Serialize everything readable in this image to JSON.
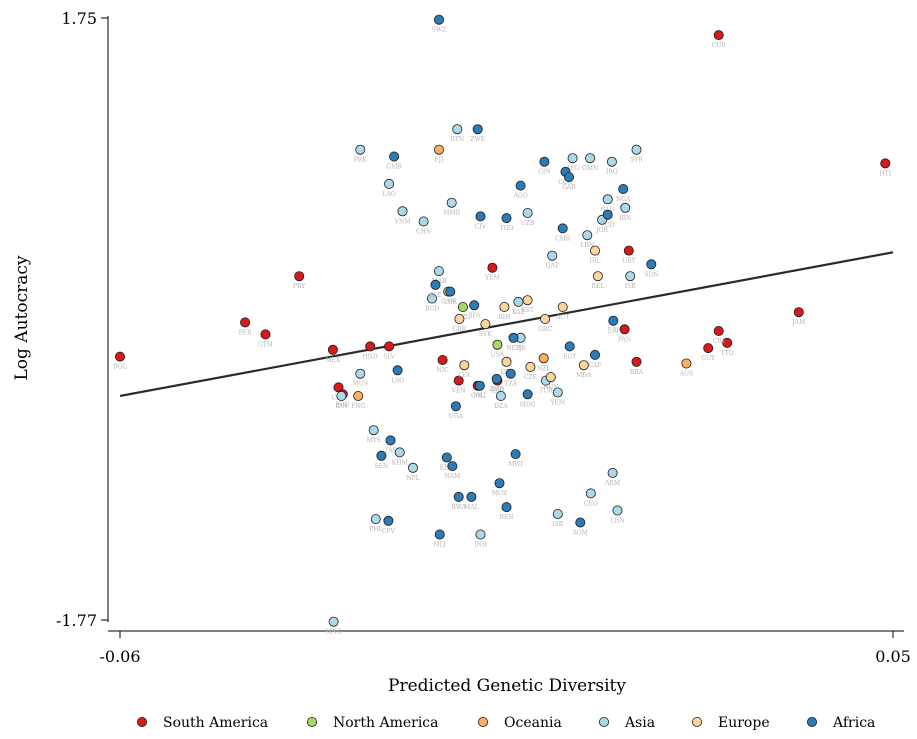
{
  "chart_data": {
    "type": "scatter",
    "xlabel": "Predicted Genetic Diversity",
    "ylabel": "Log Autocracy",
    "xlim": [
      -0.06,
      0.05
    ],
    "ylim": [
      -1.77,
      1.75
    ],
    "x_ticks": [
      "-0.06",
      "0.05"
    ],
    "y_ticks": [
      "1.75",
      "-1.77"
    ],
    "grid": false,
    "legend_position": "bottom",
    "fit_line": {
      "x": [
        -0.06,
        0.05
      ],
      "y": [
        -0.46,
        0.38
      ]
    },
    "series": [
      {
        "name": "South America",
        "color": "#d7191c",
        "points": [
          {
            "x": -0.06,
            "y": -0.23,
            "label": "BOL"
          },
          {
            "x": -0.0422,
            "y": -0.03,
            "label": "PER"
          },
          {
            "x": -0.0393,
            "y": -0.1,
            "label": "GTM"
          },
          {
            "x": -0.0345,
            "y": 0.24,
            "label": "PRY"
          },
          {
            "x": -0.0297,
            "y": -0.19,
            "label": "MEX"
          },
          {
            "x": -0.0289,
            "y": -0.41,
            "label": "CHL"
          },
          {
            "x": -0.0283,
            "y": -0.45,
            "label": "ECU"
          },
          {
            "x": -0.0244,
            "y": -0.17,
            "label": "HND"
          },
          {
            "x": -0.0217,
            "y": -0.17,
            "label": "SLV"
          },
          {
            "x": -0.0141,
            "y": -0.25,
            "label": "NIC"
          },
          {
            "x": -0.0118,
            "y": -0.37,
            "label": "VEN"
          },
          {
            "x": -0.0091,
            "y": -0.4,
            "label": "COL"
          },
          {
            "x": -0.0063,
            "y": -0.37,
            "label": "ARG"
          },
          {
            "x": -0.007,
            "y": 0.29,
            "label": "YEM"
          },
          {
            "x": 0.0124,
            "y": 0.39,
            "label": "URY"
          },
          {
            "x": 0.0118,
            "y": -0.07,
            "label": "PAN"
          },
          {
            "x": 0.0135,
            "y": -0.26,
            "label": "BRA"
          },
          {
            "x": 0.0237,
            "y": -0.18,
            "label": "GUY"
          },
          {
            "x": 0.0264,
            "y": -0.15,
            "label": "TTO"
          },
          {
            "x": 0.0252,
            "y": -0.08,
            "label": "CRI"
          },
          {
            "x": 0.0366,
            "y": 0.03,
            "label": "JAM"
          },
          {
            "x": 0.0252,
            "y": 1.65,
            "label": "CUB"
          },
          {
            "x": 0.0489,
            "y": 0.9,
            "label": "HTI"
          }
        ]
      },
      {
        "name": "North America",
        "color": "#a6d96a",
        "points": [
          {
            "x": -0.0133,
            "y": 0.15,
            "label": "CAN"
          },
          {
            "x": -0.0063,
            "y": -0.16,
            "label": "USA"
          },
          {
            "x": -0.0112,
            "y": 0.06,
            "label": "NZL"
          }
        ]
      },
      {
        "name": "Oceania",
        "color": "#fdae61",
        "points": [
          {
            "x": -0.0146,
            "y": 0.98,
            "label": "FJI"
          },
          {
            "x": -0.0261,
            "y": -0.46,
            "label": "PNG"
          },
          {
            "x": 0.0206,
            "y": -0.27,
            "label": "AUS"
          },
          {
            "x": 0.0003,
            "y": -0.24,
            "label": "NZL"
          }
        ]
      },
      {
        "name": "Asia",
        "color": "#abd9e9",
        "points": [
          {
            "x": -0.0258,
            "y": 0.98,
            "label": "PRK"
          },
          {
            "x": -0.0217,
            "y": 0.78,
            "label": "LAO"
          },
          {
            "x": -0.0198,
            "y": 0.62,
            "label": "VNM"
          },
          {
            "x": -0.0168,
            "y": 0.56,
            "label": "CHN"
          },
          {
            "x": -0.0285,
            "y": -0.46,
            "label": "IDN"
          },
          {
            "x": -0.0258,
            "y": -0.33,
            "label": "MUS"
          },
          {
            "x": -0.0239,
            "y": -0.66,
            "label": "MYS"
          },
          {
            "x": -0.0202,
            "y": -0.79,
            "label": "KHM"
          },
          {
            "x": -0.0183,
            "y": -0.88,
            "label": "NPL"
          },
          {
            "x": -0.0236,
            "y": -1.18,
            "label": "PHL"
          },
          {
            "x": -0.0156,
            "y": 0.11,
            "label": "BGD"
          },
          {
            "x": -0.0146,
            "y": 0.27,
            "label": "MAB"
          },
          {
            "x": -0.0128,
            "y": 0.67,
            "label": "MMR"
          },
          {
            "x": -0.012,
            "y": 1.1,
            "label": "BTN"
          },
          {
            "x": -0.0033,
            "y": 0.09,
            "label": "KAZ"
          },
          {
            "x": -0.002,
            "y": 0.61,
            "label": "UZB"
          },
          {
            "x": 0.0044,
            "y": 0.93,
            "label": "AFG"
          },
          {
            "x": 0.0069,
            "y": 0.93,
            "label": "OMN"
          },
          {
            "x": 0.0094,
            "y": 0.69,
            "label": "SAU"
          },
          {
            "x": 0.0119,
            "y": 0.64,
            "label": "IRN"
          },
          {
            "x": 0.0135,
            "y": 0.98,
            "label": "SYR"
          },
          {
            "x": 0.01,
            "y": 0.91,
            "label": "IRQ"
          },
          {
            "x": 0.0086,
            "y": 0.57,
            "label": "JOR"
          },
          {
            "x": 0.0065,
            "y": 0.48,
            "label": "LBN"
          },
          {
            "x": -0.003,
            "y": -0.12,
            "label": "TJK"
          },
          {
            "x": 0.0006,
            "y": -0.37,
            "label": "TUR"
          },
          {
            "x": 0.0015,
            "y": 0.36,
            "label": "QAT"
          },
          {
            "x": 0.0023,
            "y": -0.44,
            "label": "YEM"
          },
          {
            "x": 0.0126,
            "y": 0.24,
            "label": "ISR"
          },
          {
            "x": 0.0101,
            "y": -0.91,
            "label": "ARM"
          },
          {
            "x": 0.007,
            "y": -1.03,
            "label": "GEO"
          },
          {
            "x": 0.0108,
            "y": -1.13,
            "label": "LBN"
          },
          {
            "x": 0.0023,
            "y": -1.15,
            "label": "ISR"
          },
          {
            "x": -0.0087,
            "y": -1.27,
            "label": "IND"
          },
          {
            "x": -0.0058,
            "y": -0.46,
            "label": "DZA"
          },
          {
            "x": -0.0296,
            "y": -1.78,
            "label": "MNG"
          }
        ]
      },
      {
        "name": "Europe",
        "color": "#fdd49e",
        "points": [
          {
            "x": -0.0117,
            "y": -0.01,
            "label": "GBR"
          },
          {
            "x": -0.008,
            "y": -0.04,
            "label": "SVK"
          },
          {
            "x": -0.0053,
            "y": 0.06,
            "label": "BIH"
          },
          {
            "x": -0.002,
            "y": 0.1,
            "label": "EST"
          },
          {
            "x": 0.0005,
            "y": -0.01,
            "label": "GRC"
          },
          {
            "x": 0.003,
            "y": 0.06,
            "label": "AUT"
          },
          {
            "x": 0.006,
            "y": -0.28,
            "label": "MDA"
          },
          {
            "x": 0.008,
            "y": 0.24,
            "label": "BEL"
          },
          {
            "x": 0.0076,
            "y": 0.39,
            "label": "IRL"
          },
          {
            "x": -0.011,
            "y": -0.28,
            "label": "LVA"
          },
          {
            "x": -0.005,
            "y": -0.26,
            "label": "LTU"
          },
          {
            "x": -0.0016,
            "y": -0.29,
            "label": "CZE"
          },
          {
            "x": 0.0013,
            "y": -0.35,
            "label": "HUN"
          }
        ]
      },
      {
        "name": "Africa",
        "color": "#2c7bb6",
        "points": [
          {
            "x": -0.0146,
            "y": 1.74,
            "label": "SWZ"
          },
          {
            "x": -0.0091,
            "y": 1.1,
            "label": "ZWE"
          },
          {
            "x": -0.021,
            "y": 0.94,
            "label": "GMB"
          },
          {
            "x": -0.003,
            "y": 0.77,
            "label": "AGO"
          },
          {
            "x": -0.0087,
            "y": 0.59,
            "label": "CIV"
          },
          {
            "x": -0.005,
            "y": 0.58,
            "label": "TGO"
          },
          {
            "x": 0.0004,
            "y": 0.91,
            "label": "GIN"
          },
          {
            "x": 0.0034,
            "y": 0.85,
            "label": "COG"
          },
          {
            "x": 0.003,
            "y": 0.52,
            "label": "CMR"
          },
          {
            "x": 0.0039,
            "y": 0.82,
            "label": "GAB"
          },
          {
            "x": 0.0116,
            "y": 0.75,
            "label": "NGA"
          },
          {
            "x": 0.0094,
            "y": 0.6,
            "label": "TCD"
          },
          {
            "x": 0.0156,
            "y": 0.31,
            "label": "SDN"
          },
          {
            "x": -0.0151,
            "y": 0.19,
            "label": "SLE"
          },
          {
            "x": -0.013,
            "y": 0.15,
            "label": "LBR"
          },
          {
            "x": -0.0096,
            "y": 0.07,
            "label": "BFA"
          },
          {
            "x": -0.004,
            "y": -0.12,
            "label": "NER"
          },
          {
            "x": -0.0088,
            "y": -0.4,
            "label": "MLI"
          },
          {
            "x": -0.0064,
            "y": -0.36,
            "label": "ZMB"
          },
          {
            "x": -0.0044,
            "y": -0.33,
            "label": "TZA"
          },
          {
            "x": 0.004,
            "y": -0.17,
            "label": "EGY"
          },
          {
            "x": 0.0076,
            "y": -0.22,
            "label": "CAF"
          },
          {
            "x": 0.0102,
            "y": -0.02,
            "label": "ERI"
          },
          {
            "x": -0.0205,
            "y": -0.31,
            "label": "LSO"
          },
          {
            "x": -0.0228,
            "y": -0.81,
            "label": "SEN"
          },
          {
            "x": -0.0215,
            "y": -0.72,
            "label": "ZAF"
          },
          {
            "x": -0.0135,
            "y": -0.82,
            "label": "KEN"
          },
          {
            "x": -0.0127,
            "y": -0.87,
            "label": "NAM"
          },
          {
            "x": -0.0118,
            "y": -1.05,
            "label": "BWA"
          },
          {
            "x": -0.01,
            "y": -1.05,
            "label": "MAL"
          },
          {
            "x": -0.006,
            "y": -0.97,
            "label": "MOZ"
          },
          {
            "x": -0.005,
            "y": -1.11,
            "label": "BEN"
          },
          {
            "x": -0.0037,
            "y": -0.8,
            "label": "MWI"
          },
          {
            "x": -0.002,
            "y": -0.45,
            "label": "MDG"
          },
          {
            "x": -0.0145,
            "y": -1.27,
            "label": "MLI"
          },
          {
            "x": -0.0218,
            "y": -1.19,
            "label": "CPV"
          },
          {
            "x": 0.0055,
            "y": -1.2,
            "label": "SOM"
          },
          {
            "x": -0.0122,
            "y": -0.52,
            "label": "UGA"
          }
        ]
      }
    ]
  }
}
